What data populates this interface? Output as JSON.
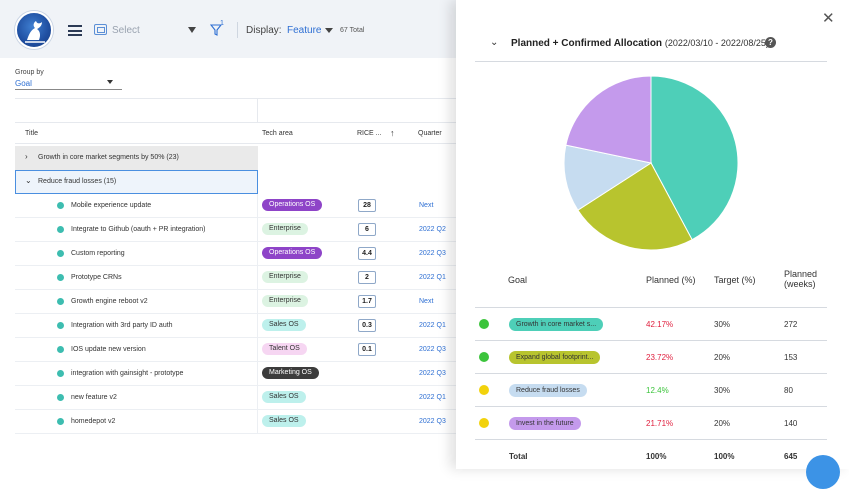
{
  "toolbar": {
    "select_placeholder": "Select",
    "filter_count": "1",
    "display_label": "Display:",
    "display_value": "Feature",
    "total": "67 Total"
  },
  "group_by": {
    "label": "Group by",
    "value": "Goal"
  },
  "table": {
    "headers": {
      "title": "Title",
      "tech_area": "Tech area",
      "rice": "RICE ...",
      "quarter": "Quarter"
    },
    "groups": [
      {
        "label": "Growth in core market segments by 50% (23)"
      },
      {
        "label": "Reduce fraud losses (15)"
      }
    ],
    "rows": [
      {
        "title": "Mobile experience update",
        "tag": "Operations OS",
        "score": "28",
        "quarter": "Next"
      },
      {
        "title": "Integrate to Github (oauth + PR integration)",
        "tag": "Enterprise",
        "score": "6",
        "quarter": "2022 Q2"
      },
      {
        "title": "Custom reporting",
        "tag": "Operations OS",
        "score": "4.4",
        "quarter": "2022 Q3"
      },
      {
        "title": "Prototype CRNs",
        "tag": "Enterprise",
        "score": "2",
        "quarter": "2022 Q1"
      },
      {
        "title": "Growth engine reboot v2",
        "tag": "Enterprise",
        "score": "1.7",
        "quarter": "Next"
      },
      {
        "title": "Integration with 3rd party ID auth",
        "tag": "Sales OS",
        "score": "0.3",
        "quarter": "2022 Q1"
      },
      {
        "title": "IOS update new version",
        "tag": "Talent OS",
        "score": "0.1",
        "quarter": "2022 Q3"
      },
      {
        "title": "integration with gainsight - prototype",
        "tag": "Marketing OS",
        "score": "",
        "quarter": "2022 Q3"
      },
      {
        "title": "new feature v2",
        "tag": "Sales OS",
        "score": "",
        "quarter": "2022 Q1"
      },
      {
        "title": "homedepot v2",
        "tag": "Sales OS",
        "score": "",
        "quarter": "2022 Q3"
      }
    ],
    "tag_styles": {
      "Operations OS": {
        "bg": "#8e44c8",
        "fg": "#ffffff"
      },
      "Enterprise": {
        "bg": "#dcf3e2",
        "fg": "#333333"
      },
      "Sales OS": {
        "bg": "#bdf0ec",
        "fg": "#333333"
      },
      "Talent OS": {
        "bg": "#f6d6f2",
        "fg": "#333333"
      },
      "Marketing OS": {
        "bg": "#3c3c3c",
        "fg": "#ffffff"
      }
    }
  },
  "panel": {
    "title": "Planned + Confirmed Allocation",
    "range": "(2022/03/10 - 2022/08/25)",
    "headers": {
      "goal": "Goal",
      "planned": "Planned (%)",
      "target": "Target (%)",
      "weeks_line1": "Planned",
      "weeks_line2": "(weeks)"
    },
    "goals": [
      {
        "name": "Growth in core market s...",
        "planned": "42.17%",
        "target": "30%",
        "weeks": "272",
        "status": "#3cc43c",
        "planned_color": "#e0213f",
        "color": "#4ecfb8"
      },
      {
        "name": "Expand global footprint...",
        "planned": "23.72%",
        "target": "20%",
        "weeks": "153",
        "status": "#3cc43c",
        "planned_color": "#e0213f",
        "color": "#b8c42e"
      },
      {
        "name": "Reduce fraud losses",
        "planned": "12.4%",
        "target": "30%",
        "weeks": "80",
        "status": "#f2d20c",
        "planned_color": "#3cc43c",
        "color": "#c6dcf0"
      },
      {
        "name": "Invest in the future",
        "planned": "21.71%",
        "target": "20%",
        "weeks": "140",
        "status": "#f2d20c",
        "planned_color": "#e0213f",
        "color": "#c49aec"
      }
    ],
    "total": {
      "label": "Total",
      "planned": "100%",
      "target": "100%",
      "weeks": "645"
    }
  },
  "chart_data": {
    "type": "pie",
    "categories": [
      "Growth in core market s...",
      "Expand global footprint...",
      "Reduce fraud losses",
      "Invest in the future"
    ],
    "values": [
      42.17,
      23.72,
      12.4,
      21.71
    ],
    "colors": [
      "#4ecfb8",
      "#b8c42e",
      "#c6dcf0",
      "#c49aec"
    ]
  }
}
